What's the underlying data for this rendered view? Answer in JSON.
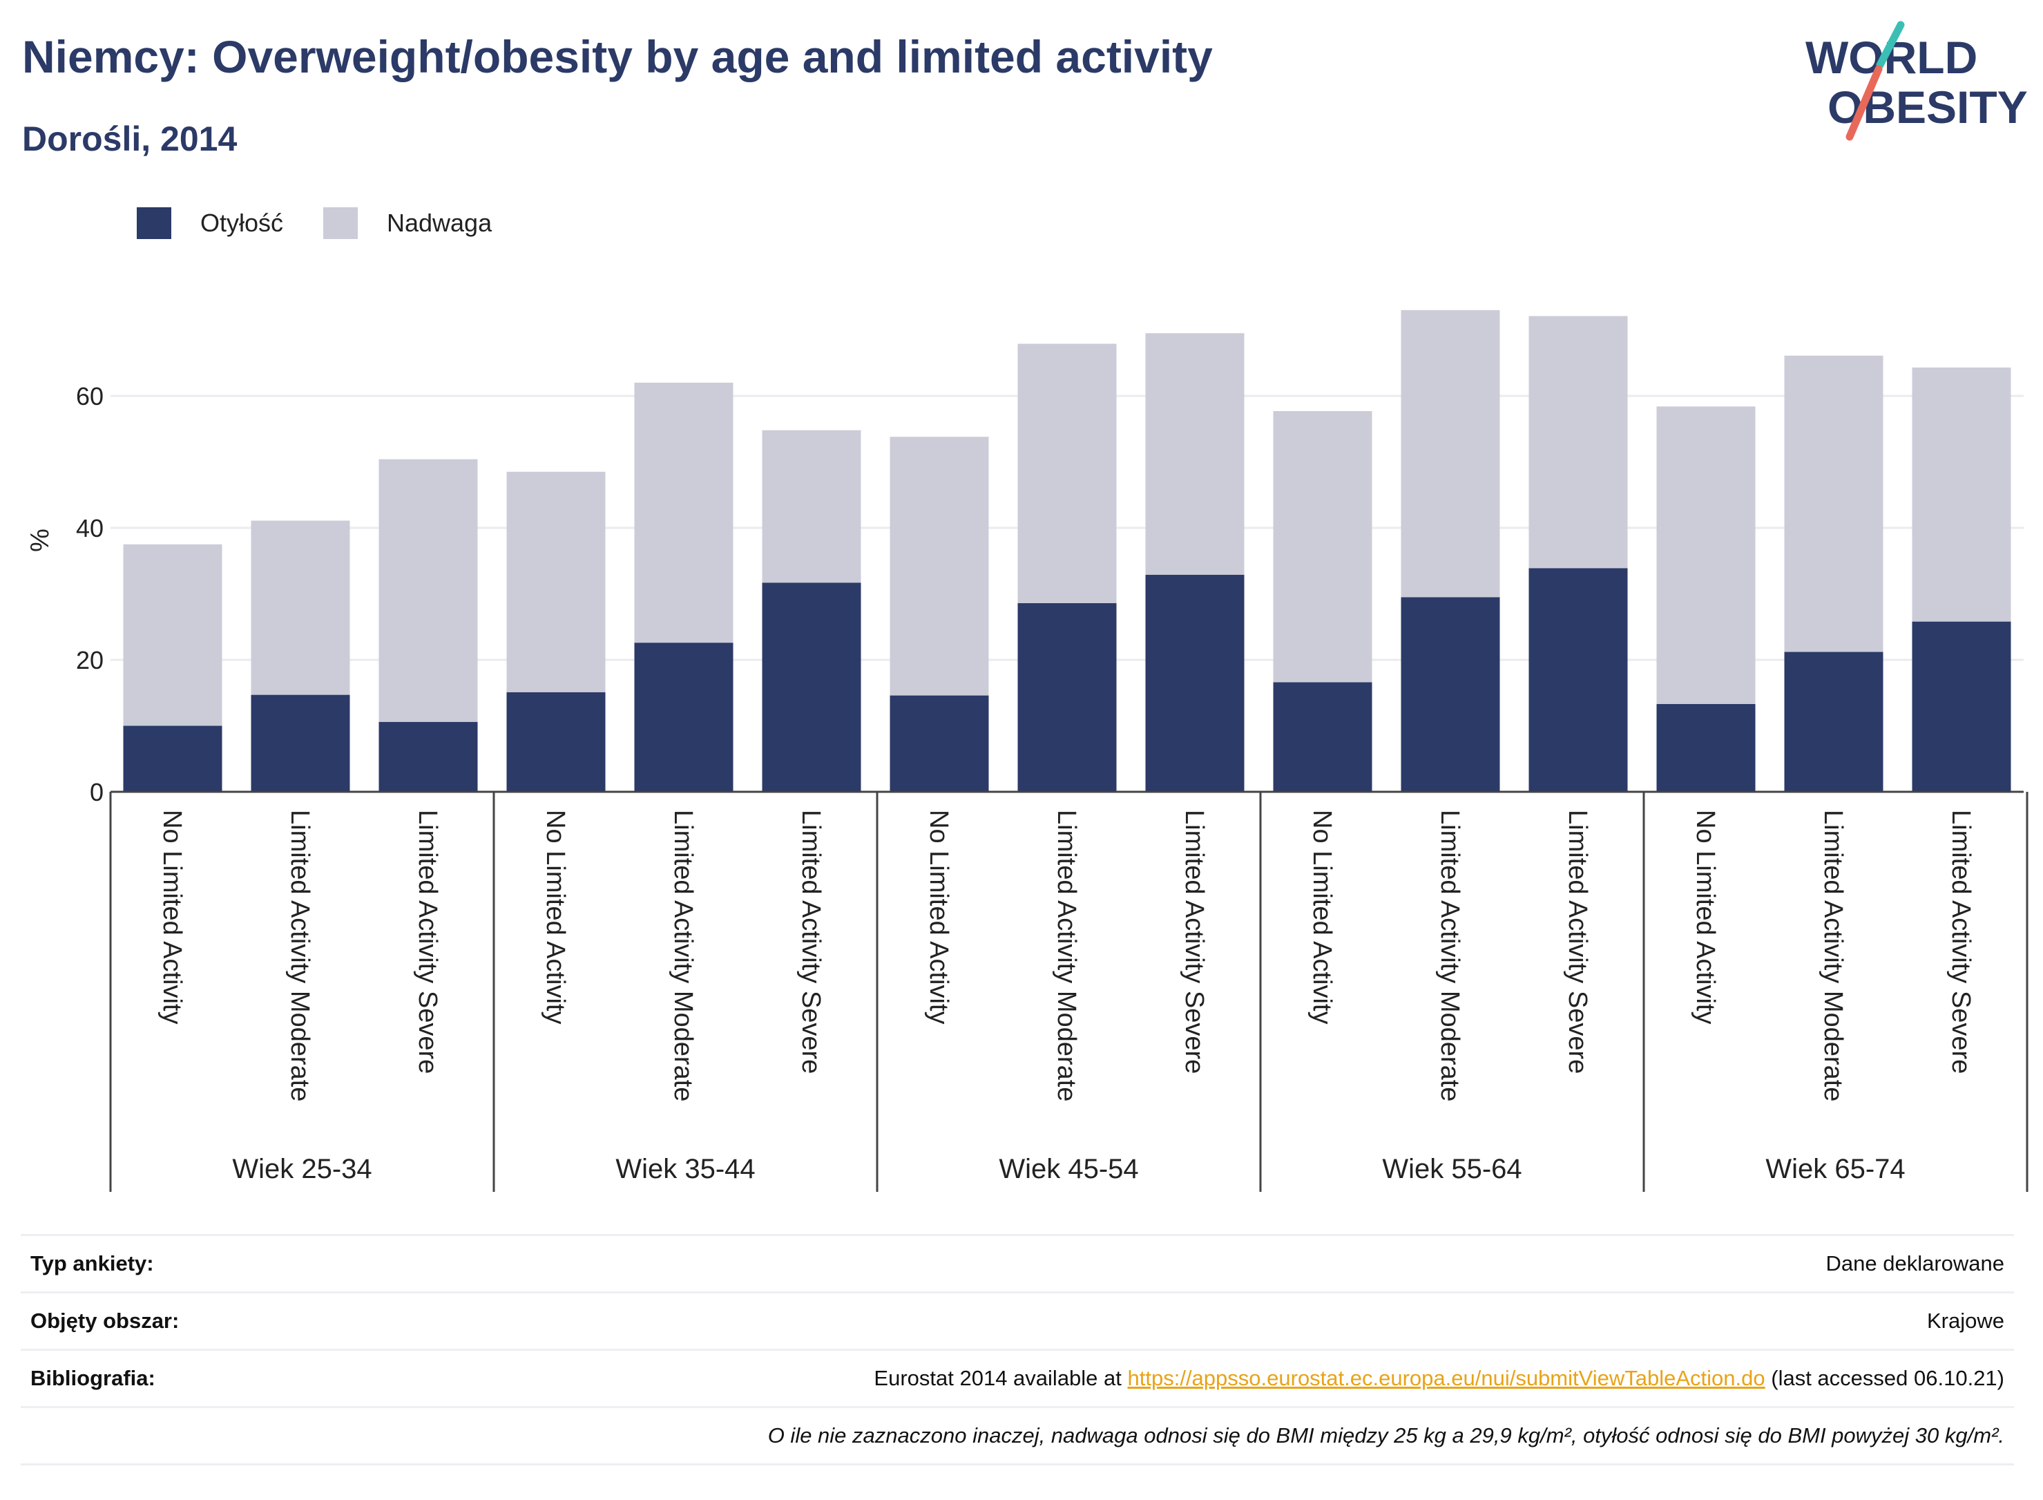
{
  "title": "Niemcy: Overweight/obesity by age and limited activity",
  "subtitle": "Dorośli, 2014",
  "logo": {
    "line1": "WORLD",
    "line2": "OBESITY",
    "accent_colors": [
      "#3bbfb5",
      "#e8695a"
    ],
    "text_color": "#2b3a67"
  },
  "colors": {
    "obesity": "#2b3a67",
    "overweight": "#cbccd8",
    "title": "#2b3a67",
    "link": "#e8a317"
  },
  "chart_data": {
    "type": "bar",
    "stacked": true,
    "ylabel": "%",
    "ylim": [
      0,
      75
    ],
    "yticks": [
      0,
      20,
      40,
      60
    ],
    "grid": true,
    "legend_placement": "top-left",
    "groups": [
      {
        "label": "Wiek 25-34",
        "categories": [
          "No Limited Activity",
          "Limited Activity Moderate",
          "Limited Activity Severe"
        ]
      },
      {
        "label": "Wiek 35-44",
        "categories": [
          "No Limited Activity",
          "Limited Activity Moderate",
          "Limited Activity Severe"
        ]
      },
      {
        "label": "Wiek 45-54",
        "categories": [
          "No Limited Activity",
          "Limited Activity Moderate",
          "Limited Activity Severe"
        ]
      },
      {
        "label": "Wiek 55-64",
        "categories": [
          "No Limited Activity",
          "Limited Activity Moderate",
          "Limited Activity Severe"
        ]
      },
      {
        "label": "Wiek 65-74",
        "categories": [
          "No Limited Activity",
          "Limited Activity Moderate",
          "Limited Activity Severe"
        ]
      }
    ],
    "series": [
      {
        "name": "Otyłość",
        "values": [
          10.0,
          14.7,
          10.6,
          15.1,
          22.6,
          31.7,
          14.6,
          28.6,
          32.9,
          16.6,
          29.5,
          33.9,
          13.3,
          21.2,
          25.8
        ]
      },
      {
        "name": "Nadwaga",
        "values": [
          27.5,
          26.4,
          39.8,
          33.4,
          39.4,
          23.1,
          39.2,
          39.3,
          36.6,
          41.1,
          43.5,
          38.2,
          45.1,
          44.9,
          38.5
        ]
      }
    ]
  },
  "info": {
    "rows": [
      {
        "label": "Typ ankiety:",
        "value": "Dane deklarowane"
      },
      {
        "label": "Objęty obszar:",
        "value": "Krajowe"
      },
      {
        "label": "Bibliografia:",
        "value_prefix": "Eurostat 2014 available at ",
        "link": "https://appsso.eurostat.ec.europa.eu/nui/submitViewTableAction.do",
        "value_suffix": " (last accessed 06.10.21)"
      }
    ],
    "note": "O ile nie zaznaczono inaczej, nadwaga odnosi się do BMI między 25 kg a 29,9 kg/m², otyłość odnosi się do BMI powyżej 30 kg/m²."
  }
}
